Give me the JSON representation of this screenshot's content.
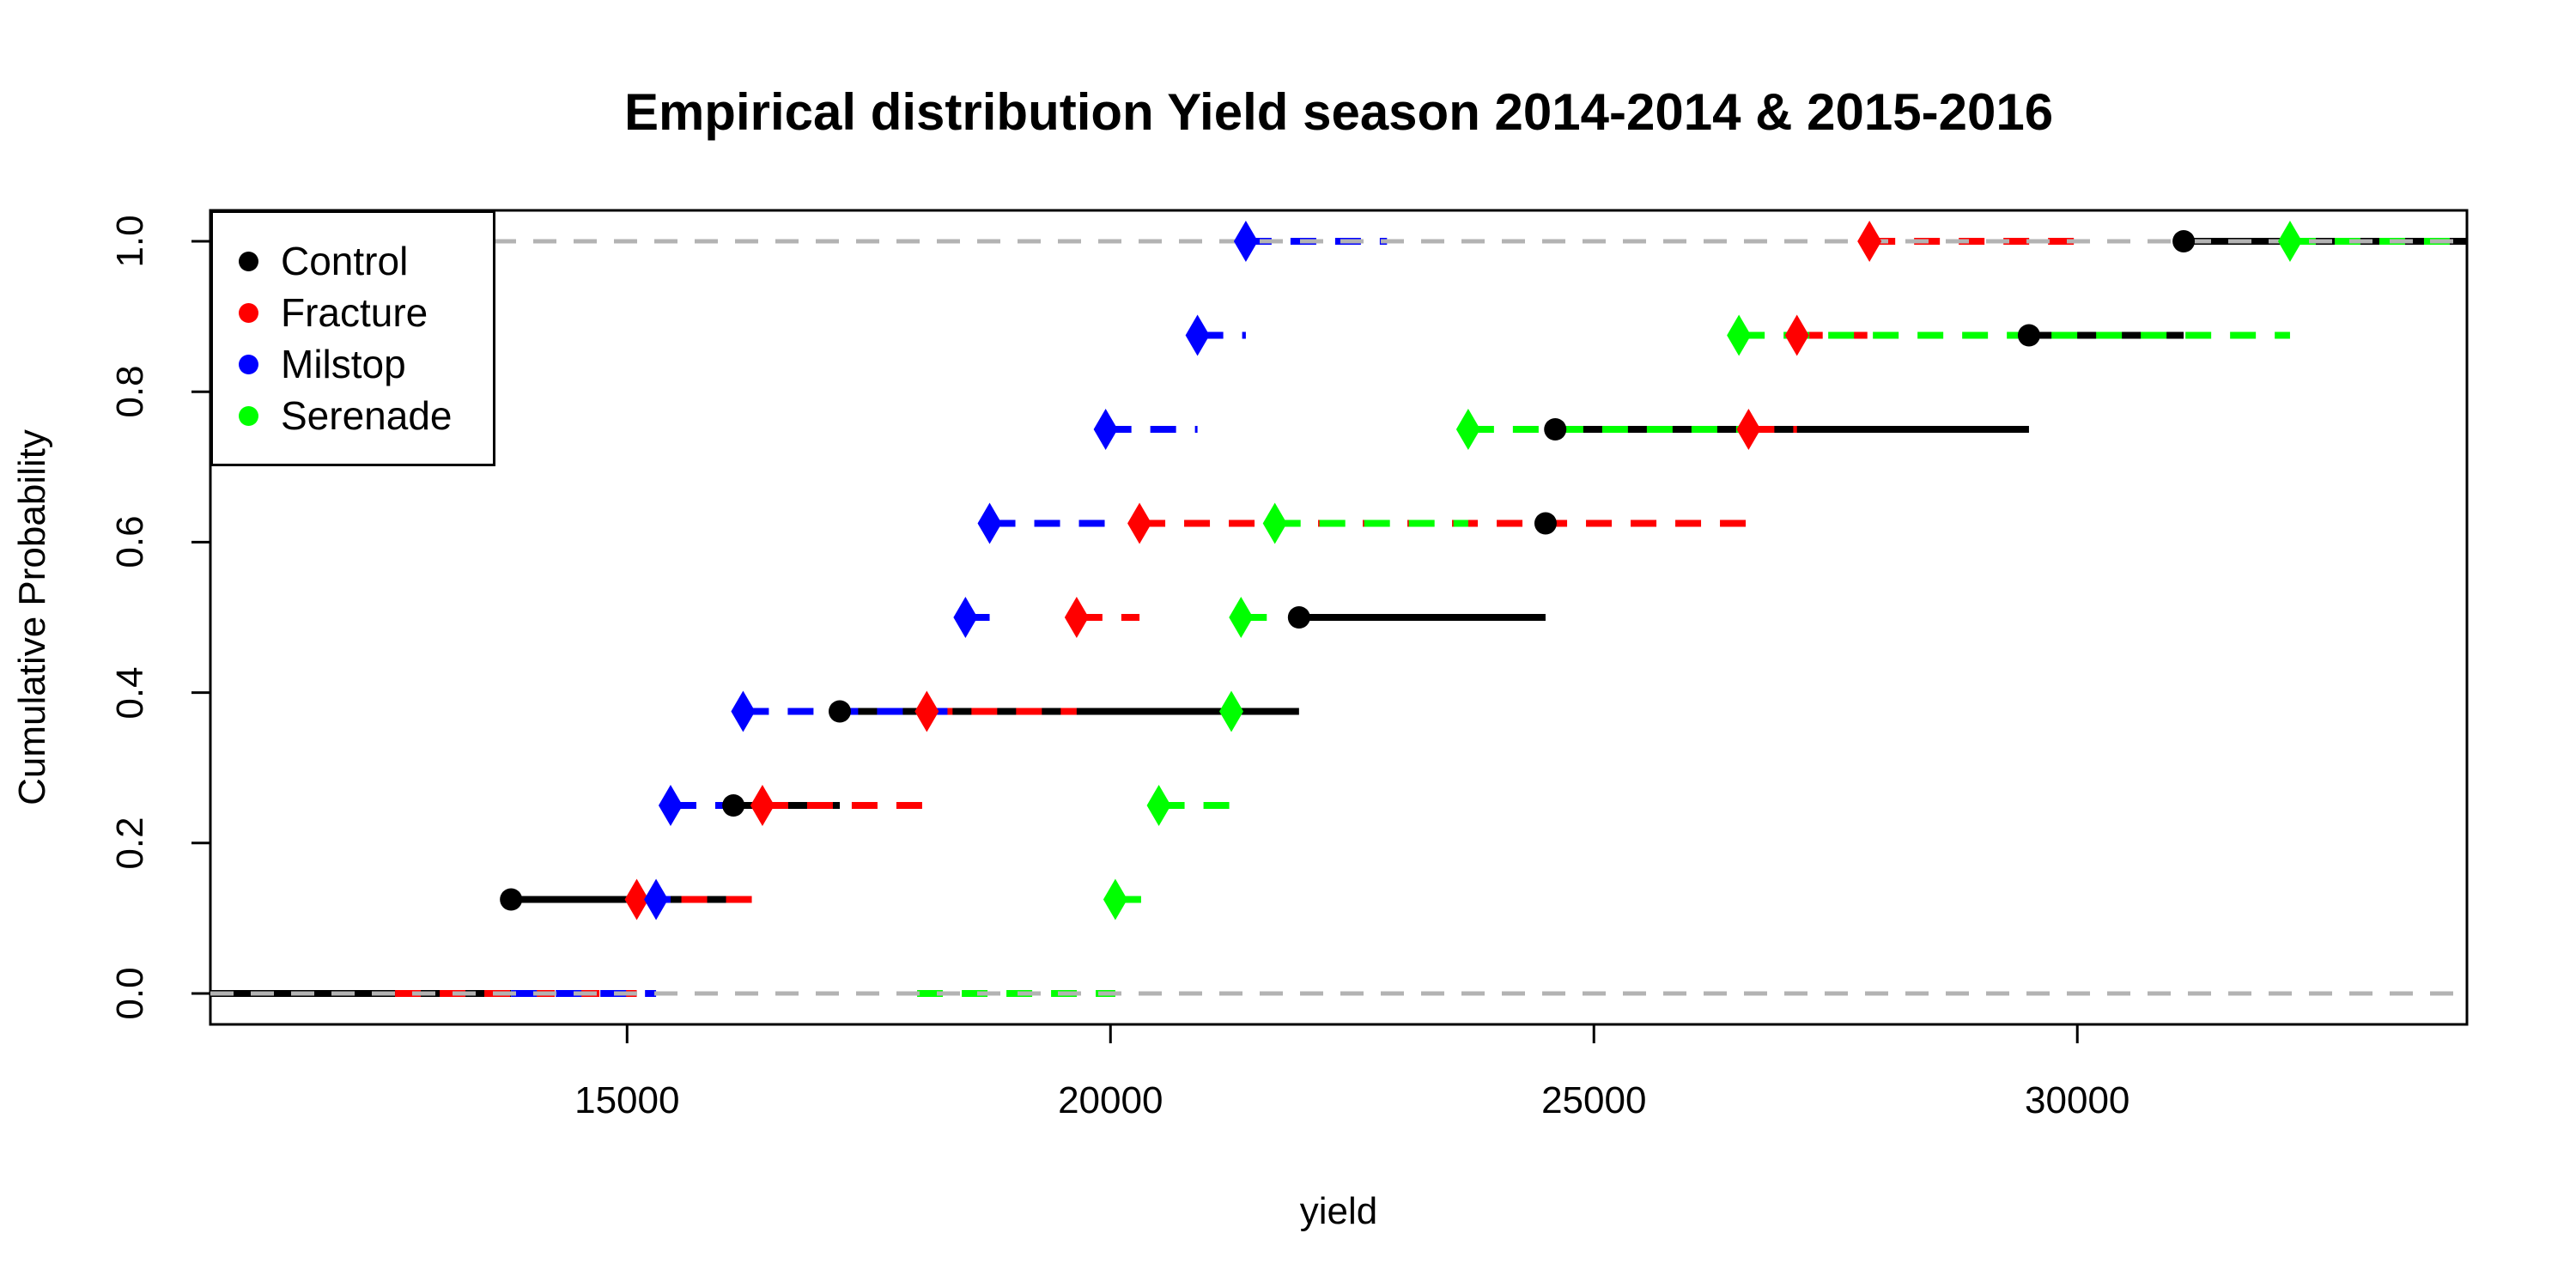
{
  "title": "Empirical distribution Yield season 2014-2014 & 2015-2016",
  "chart_data": {
    "type": "step-ecdf",
    "title": "Empirical distribution Yield season 2014-2014 & 2015-2016",
    "xlabel": "yield",
    "ylabel": "Cumulative Probability",
    "xlim": [
      10690,
      34030
    ],
    "ylim": [
      0,
      1
    ],
    "grid": "off",
    "xticks": [
      15000,
      20000,
      25000,
      30000
    ],
    "xtick_labels": [
      "15000",
      "20000",
      "25000",
      "30000"
    ],
    "yticks": [
      0.0,
      0.2,
      0.4,
      0.6,
      0.8,
      1.0
    ],
    "ytick_labels": [
      "0.0",
      "0.2",
      "0.4",
      "0.6",
      "0.8",
      "1.0"
    ],
    "step_probabilities": [
      0.125,
      0.25,
      0.375,
      0.5,
      0.625,
      0.75,
      0.875,
      1.0
    ],
    "reference_lines": {
      "at": [
        0,
        1
      ],
      "color": "#B3B3B3",
      "style": "dashed"
    },
    "legend_position": "top-left",
    "series": [
      {
        "name": "Control",
        "color": "#000000",
        "line_style": "solid",
        "marker": "circle",
        "values": [
          13800,
          16100,
          17200,
          21950,
          24500,
          24600,
          29500,
          31100
        ],
        "line_start": 10690,
        "line_end": 34030
      },
      {
        "name": "Fracture",
        "color": "#FF0000",
        "line_style": "dashed",
        "marker": "diamond",
        "values": [
          15100,
          16400,
          18100,
          19650,
          20300,
          26600,
          27100,
          27850
        ],
        "line_start": 12600,
        "line_end": 30150
      },
      {
        "name": "Milstop",
        "color": "#0000FF",
        "line_style": "dashed",
        "marker": "diamond",
        "values": [
          15300,
          15450,
          16200,
          18500,
          18750,
          19950,
          20900,
          21400
        ],
        "line_start": 13800,
        "line_end": 22860
      },
      {
        "name": "Serenade",
        "color": "#00FF00",
        "line_style": "dashed",
        "marker": "diamond",
        "values": [
          20050,
          20500,
          21250,
          21350,
          21700,
          23700,
          26500,
          32200
        ],
        "line_start": 18000,
        "line_end": 34030
      }
    ]
  }
}
